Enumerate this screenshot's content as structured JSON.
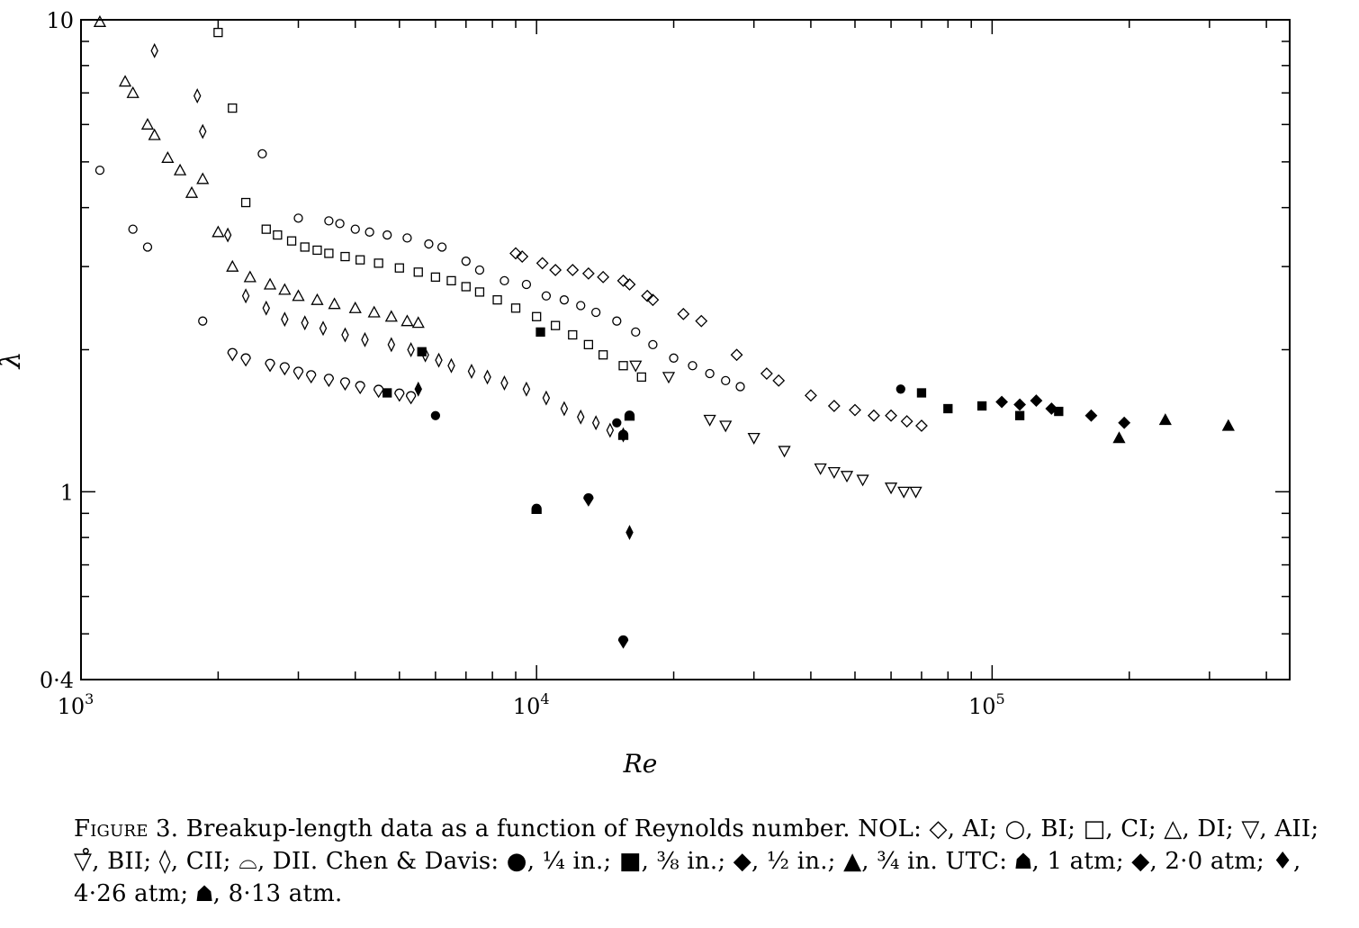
{
  "chart_data": {
    "type": "scatter",
    "xlabel": "Re",
    "ylabel": "λ",
    "x_scale": "log",
    "y_scale": "log",
    "xlim": [
      1000,
      450000
    ],
    "ylim": [
      0.4,
      10
    ],
    "x_tick_labels": [
      {
        "value": 1000,
        "base": "10",
        "exp": "3"
      },
      {
        "value": 10000,
        "base": "10",
        "exp": "4"
      },
      {
        "value": 100000,
        "base": "10",
        "exp": "5"
      }
    ],
    "y_tick_labels": [
      {
        "value": 10,
        "label": "10"
      },
      {
        "value": 1,
        "label": "1"
      },
      {
        "value": 0.4,
        "label": "0·4"
      }
    ],
    "series": [
      {
        "key": "NOL AI",
        "marker": "diamond-open",
        "points": [
          [
            9000,
            3.2
          ],
          [
            9300,
            3.15
          ],
          [
            10300,
            3.05
          ],
          [
            11000,
            2.95
          ],
          [
            12000,
            2.95
          ],
          [
            13000,
            2.9
          ],
          [
            14000,
            2.85
          ],
          [
            15500,
            2.8
          ],
          [
            16000,
            2.75
          ],
          [
            17500,
            2.6
          ],
          [
            18000,
            2.55
          ],
          [
            21000,
            2.38
          ],
          [
            23000,
            2.3
          ],
          [
            27500,
            1.95
          ],
          [
            32000,
            1.78
          ],
          [
            34000,
            1.72
          ],
          [
            40000,
            1.6
          ],
          [
            45000,
            1.52
          ],
          [
            50000,
            1.49
          ],
          [
            55000,
            1.45
          ],
          [
            60000,
            1.45
          ],
          [
            65000,
            1.41
          ],
          [
            70000,
            1.38
          ]
        ]
      },
      {
        "key": "NOL BI",
        "marker": "circle-open",
        "points": [
          [
            1100,
            4.8
          ],
          [
            1300,
            3.6
          ],
          [
            1400,
            3.3
          ],
          [
            1850,
            2.3
          ],
          [
            2500,
            5.2
          ],
          [
            3000,
            3.8
          ],
          [
            3500,
            3.75
          ],
          [
            3700,
            3.7
          ],
          [
            4000,
            3.6
          ],
          [
            4300,
            3.55
          ],
          [
            4700,
            3.5
          ],
          [
            5200,
            3.45
          ],
          [
            5800,
            3.35
          ],
          [
            6200,
            3.3
          ],
          [
            7000,
            3.08
          ],
          [
            7500,
            2.95
          ],
          [
            8500,
            2.8
          ],
          [
            9500,
            2.75
          ],
          [
            10500,
            2.6
          ],
          [
            11500,
            2.55
          ],
          [
            12500,
            2.48
          ],
          [
            13500,
            2.4
          ],
          [
            15000,
            2.3
          ],
          [
            16500,
            2.18
          ],
          [
            18000,
            2.05
          ],
          [
            20000,
            1.92
          ],
          [
            22000,
            1.85
          ],
          [
            24000,
            1.78
          ],
          [
            26000,
            1.72
          ],
          [
            28000,
            1.67
          ]
        ]
      },
      {
        "key": "NOL CI",
        "marker": "square-open",
        "points": [
          [
            2000,
            9.4
          ],
          [
            2150,
            6.5
          ],
          [
            2300,
            4.1
          ],
          [
            2550,
            3.6
          ],
          [
            2700,
            3.5
          ],
          [
            2900,
            3.4
          ],
          [
            3100,
            3.3
          ],
          [
            3300,
            3.25
          ],
          [
            3500,
            3.2
          ],
          [
            3800,
            3.15
          ],
          [
            4100,
            3.1
          ],
          [
            4500,
            3.05
          ],
          [
            5000,
            2.98
          ],
          [
            5500,
            2.92
          ],
          [
            6000,
            2.85
          ],
          [
            6500,
            2.8
          ],
          [
            7000,
            2.72
          ],
          [
            7500,
            2.65
          ],
          [
            8200,
            2.55
          ],
          [
            9000,
            2.45
          ],
          [
            10000,
            2.35
          ],
          [
            11000,
            2.25
          ],
          [
            12000,
            2.15
          ],
          [
            13000,
            2.05
          ],
          [
            14000,
            1.95
          ],
          [
            15500,
            1.85
          ],
          [
            17000,
            1.75
          ]
        ]
      },
      {
        "key": "NOL DI",
        "marker": "triangle-open",
        "points": [
          [
            1100,
            9.9
          ],
          [
            1250,
            7.4
          ],
          [
            1300,
            7.0
          ],
          [
            1400,
            6.0
          ],
          [
            1450,
            5.7
          ],
          [
            1550,
            5.1
          ],
          [
            1650,
            4.8
          ],
          [
            1750,
            4.3
          ],
          [
            1850,
            4.6
          ],
          [
            2000,
            3.55
          ],
          [
            2150,
            3.0
          ],
          [
            2350,
            2.85
          ],
          [
            2600,
            2.75
          ],
          [
            2800,
            2.68
          ],
          [
            3000,
            2.6
          ],
          [
            3300,
            2.55
          ],
          [
            3600,
            2.5
          ],
          [
            4000,
            2.45
          ],
          [
            4400,
            2.4
          ],
          [
            4800,
            2.35
          ],
          [
            5200,
            2.3
          ],
          [
            5500,
            2.28
          ]
        ]
      },
      {
        "key": "NOL AII",
        "marker": "inv-triangle-open",
        "points": [
          [
            16500,
            1.85
          ],
          [
            19500,
            1.75
          ],
          [
            24000,
            1.42
          ],
          [
            26000,
            1.38
          ],
          [
            30000,
            1.3
          ],
          [
            35000,
            1.22
          ],
          [
            42000,
            1.12
          ],
          [
            45000,
            1.1
          ],
          [
            48000,
            1.08
          ],
          [
            52000,
            1.06
          ],
          [
            60000,
            1.02
          ],
          [
            64000,
            1.0
          ],
          [
            68000,
            1.0
          ]
        ]
      },
      {
        "key": "NOL BII",
        "marker": "drop-open",
        "points": [
          [
            2150,
            1.95
          ],
          [
            2300,
            1.9
          ],
          [
            2600,
            1.85
          ],
          [
            2800,
            1.82
          ],
          [
            3000,
            1.78
          ],
          [
            3200,
            1.75
          ],
          [
            3500,
            1.72
          ],
          [
            3800,
            1.69
          ],
          [
            4100,
            1.66
          ],
          [
            4500,
            1.63
          ],
          [
            5000,
            1.6
          ],
          [
            5300,
            1.58
          ]
        ]
      },
      {
        "key": "NOL CII",
        "marker": "diamond-narrow-open",
        "points": [
          [
            1450,
            8.6
          ],
          [
            1800,
            6.9
          ],
          [
            1850,
            5.8
          ],
          [
            2100,
            3.5
          ],
          [
            2300,
            2.6
          ],
          [
            2550,
            2.45
          ],
          [
            2800,
            2.32
          ],
          [
            3100,
            2.28
          ],
          [
            3400,
            2.22
          ],
          [
            3800,
            2.15
          ],
          [
            4200,
            2.1
          ],
          [
            4800,
            2.05
          ],
          [
            5300,
            2.0
          ],
          [
            5700,
            1.95
          ],
          [
            6100,
            1.9
          ],
          [
            6500,
            1.85
          ],
          [
            7200,
            1.8
          ],
          [
            7800,
            1.75
          ],
          [
            8500,
            1.7
          ],
          [
            9500,
            1.65
          ],
          [
            10500,
            1.58
          ],
          [
            11500,
            1.5
          ],
          [
            12500,
            1.44
          ],
          [
            13500,
            1.4
          ],
          [
            14500,
            1.35
          ],
          [
            15500,
            1.32
          ]
        ]
      },
      {
        "key": "Chen & Davis 1/4 in.",
        "marker": "circle-filled",
        "points": [
          [
            6000,
            1.45
          ],
          [
            15000,
            1.4
          ],
          [
            63000,
            1.65
          ]
        ]
      },
      {
        "key": "Chen & Davis 3/8 in.",
        "marker": "square-filled",
        "points": [
          [
            4700,
            1.62
          ],
          [
            5600,
            1.98
          ],
          [
            10200,
            2.18
          ],
          [
            70000,
            1.62
          ],
          [
            80000,
            1.5
          ],
          [
            95000,
            1.52
          ],
          [
            115000,
            1.45
          ],
          [
            140000,
            1.48
          ]
        ]
      },
      {
        "key": "Chen & Davis 1/2 in.",
        "marker": "diamond-filled",
        "points": [
          [
            105000,
            1.55
          ],
          [
            115000,
            1.53
          ],
          [
            125000,
            1.56
          ],
          [
            135000,
            1.5
          ],
          [
            165000,
            1.45
          ],
          [
            195000,
            1.4
          ]
        ]
      },
      {
        "key": "Chen & Davis 3/4 in.",
        "marker": "triangle-filled",
        "points": [
          [
            190000,
            1.3
          ],
          [
            240000,
            1.42
          ],
          [
            330000,
            1.38
          ]
        ]
      },
      {
        "key": "UTC 1 atm",
        "marker": "dome-filled",
        "points": [
          [
            10000,
            0.92
          ],
          [
            16000,
            1.45
          ]
        ]
      },
      {
        "key": "UTC 2·0 atm",
        "marker": "drop-filled",
        "points": [
          [
            13000,
            0.96
          ],
          [
            15500,
            0.48
          ]
        ]
      },
      {
        "key": "UTC 4·26 atm",
        "marker": "narrow-diamond-filled",
        "points": [
          [
            5500,
            1.65
          ],
          [
            16000,
            0.82
          ]
        ]
      },
      {
        "key": "UTC 8·13 atm",
        "marker": "house-filled",
        "points": [
          [
            15500,
            1.32
          ]
        ]
      }
    ]
  },
  "caption": {
    "lead": "Figure",
    "text": " 3. Breakup-length data as a function of Reynolds number. NOL: ◇, AI; ○, BI; □, CI; △, DI; ▽, AII; ▽̊, BII; ◊, CII; ⌓, DII. Chen & Davis: ●, ¼ in.; ■, ⅜ in.; ◆, ½ in.; ▲, ¾ in. UTC: ☗, 1 atm; ◆, 2·0 atm; ♦, 4·26 atm; ☗, 8·13 atm."
  }
}
